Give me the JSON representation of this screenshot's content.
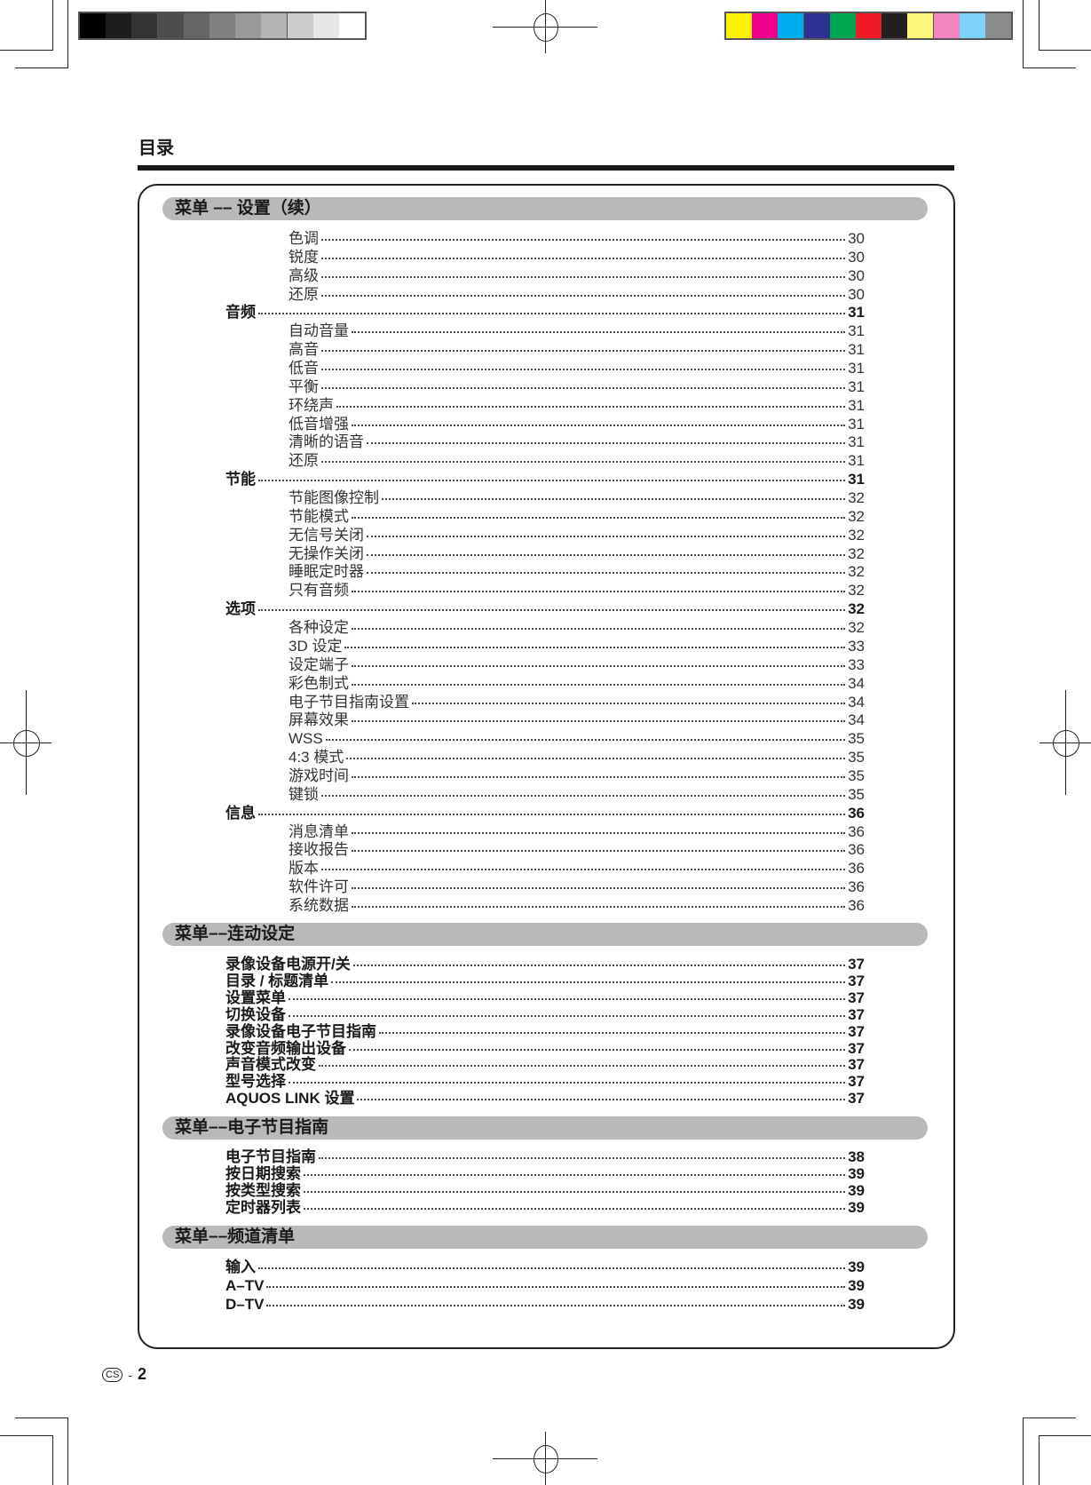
{
  "header": {
    "title": "目录"
  },
  "calibration": {
    "grayscale": [
      "#000000",
      "#1c1c1c",
      "#333333",
      "#4d4d4d",
      "#666666",
      "#808080",
      "#999999",
      "#b3b3b3",
      "#cccccc",
      "#e6e6e6",
      "#ffffff"
    ],
    "colors": [
      "#fff200",
      "#ec008c",
      "#00aeef",
      "#2e3192",
      "#00a651",
      "#ed1c24",
      "#231f20",
      "#fff57a",
      "#f284c0",
      "#7dd3f7",
      "#8c8c8c"
    ]
  },
  "sections": [
    {
      "title": "菜单 –– 设置（续）",
      "entries": [
        {
          "label": "色调",
          "page": "30",
          "level": 2
        },
        {
          "label": "锐度",
          "page": "30",
          "level": 2
        },
        {
          "label": "高级",
          "page": "30",
          "level": 2
        },
        {
          "label": "还原",
          "page": "30",
          "level": 2
        },
        {
          "label": "音频",
          "page": "31",
          "level": 1
        },
        {
          "label": "自动音量",
          "page": "31",
          "level": 2
        },
        {
          "label": "高音",
          "page": "31",
          "level": 2
        },
        {
          "label": "低音",
          "page": "31",
          "level": 2
        },
        {
          "label": "平衡",
          "page": "31",
          "level": 2
        },
        {
          "label": "环绕声",
          "page": "31",
          "level": 2
        },
        {
          "label": "低音增强",
          "page": "31",
          "level": 2
        },
        {
          "label": "清晰的语音",
          "page": "31",
          "level": 2
        },
        {
          "label": "还原",
          "page": "31",
          "level": 2
        },
        {
          "label": "节能",
          "page": "31",
          "level": 1
        },
        {
          "label": "节能图像控制",
          "page": "32",
          "level": 2
        },
        {
          "label": "节能模式",
          "page": "32",
          "level": 2
        },
        {
          "label": "无信号关闭",
          "page": "32",
          "level": 2
        },
        {
          "label": "无操作关闭",
          "page": "32",
          "level": 2
        },
        {
          "label": "睡眠定时器",
          "page": "32",
          "level": 2
        },
        {
          "label": "只有音频",
          "page": "32",
          "level": 2
        },
        {
          "label": "选项",
          "page": "32",
          "level": 1
        },
        {
          "label": "各种设定",
          "page": "32",
          "level": 2
        },
        {
          "label": "3D 设定",
          "page": "33",
          "level": 2
        },
        {
          "label": "设定端子",
          "page": "33",
          "level": 2
        },
        {
          "label": "彩色制式",
          "page": "34",
          "level": 2
        },
        {
          "label": "电子节目指南设置",
          "page": "34",
          "level": 2
        },
        {
          "label": "屏幕效果",
          "page": "34",
          "level": 2
        },
        {
          "label": "WSS",
          "page": "35",
          "level": 2
        },
        {
          "label": "4:3 模式",
          "page": "35",
          "level": 2
        },
        {
          "label": "游戏时间",
          "page": "35",
          "level": 2
        },
        {
          "label": "键锁",
          "page": "35",
          "level": 2
        },
        {
          "label": "信息",
          "page": "36",
          "level": 1
        },
        {
          "label": "消息清单",
          "page": "36",
          "level": 2
        },
        {
          "label": "接收报告",
          "page": "36",
          "level": 2
        },
        {
          "label": "版本",
          "page": "36",
          "level": 2
        },
        {
          "label": "软件许可",
          "page": "36",
          "level": 2
        },
        {
          "label": "系统数据",
          "page": "36",
          "level": 2
        }
      ]
    },
    {
      "title": "菜单––连动设定",
      "entries": [
        {
          "label": "录像设备电源开/关",
          "page": "37",
          "level": 1
        },
        {
          "label": "目录 / 标题清单",
          "page": "37",
          "level": 1
        },
        {
          "label": "设置菜单",
          "page": "37",
          "level": 1
        },
        {
          "label": "切换设备",
          "page": "37",
          "level": 1
        },
        {
          "label": "录像设备电子节目指南",
          "page": "37",
          "level": 1
        },
        {
          "label": "改变音频输出设备",
          "page": "37",
          "level": 1
        },
        {
          "label": "声音模式改变",
          "page": "37",
          "level": 1
        },
        {
          "label": "型号选择",
          "page": "37",
          "level": 1
        },
        {
          "label": "AQUOS LINK 设置",
          "page": "37",
          "level": 1
        }
      ]
    },
    {
      "title": "菜单––电子节目指南",
      "entries": [
        {
          "label": "电子节目指南",
          "page": "38",
          "level": 1
        },
        {
          "label": "按日期搜索",
          "page": "39",
          "level": 1
        },
        {
          "label": "按类型搜索",
          "page": "39",
          "level": 1
        },
        {
          "label": "定时器列表",
          "page": "39",
          "level": 1
        }
      ]
    },
    {
      "title": "菜单––频道清单",
      "entries": [
        {
          "label": "输入",
          "page": "39",
          "level": 1
        },
        {
          "label": "A–TV",
          "page": "39",
          "level": 1
        },
        {
          "label": "D–TV",
          "page": "39",
          "level": 1
        }
      ]
    }
  ],
  "footer": {
    "lang_badge": "CS",
    "separator": "-",
    "page_number": "2"
  }
}
